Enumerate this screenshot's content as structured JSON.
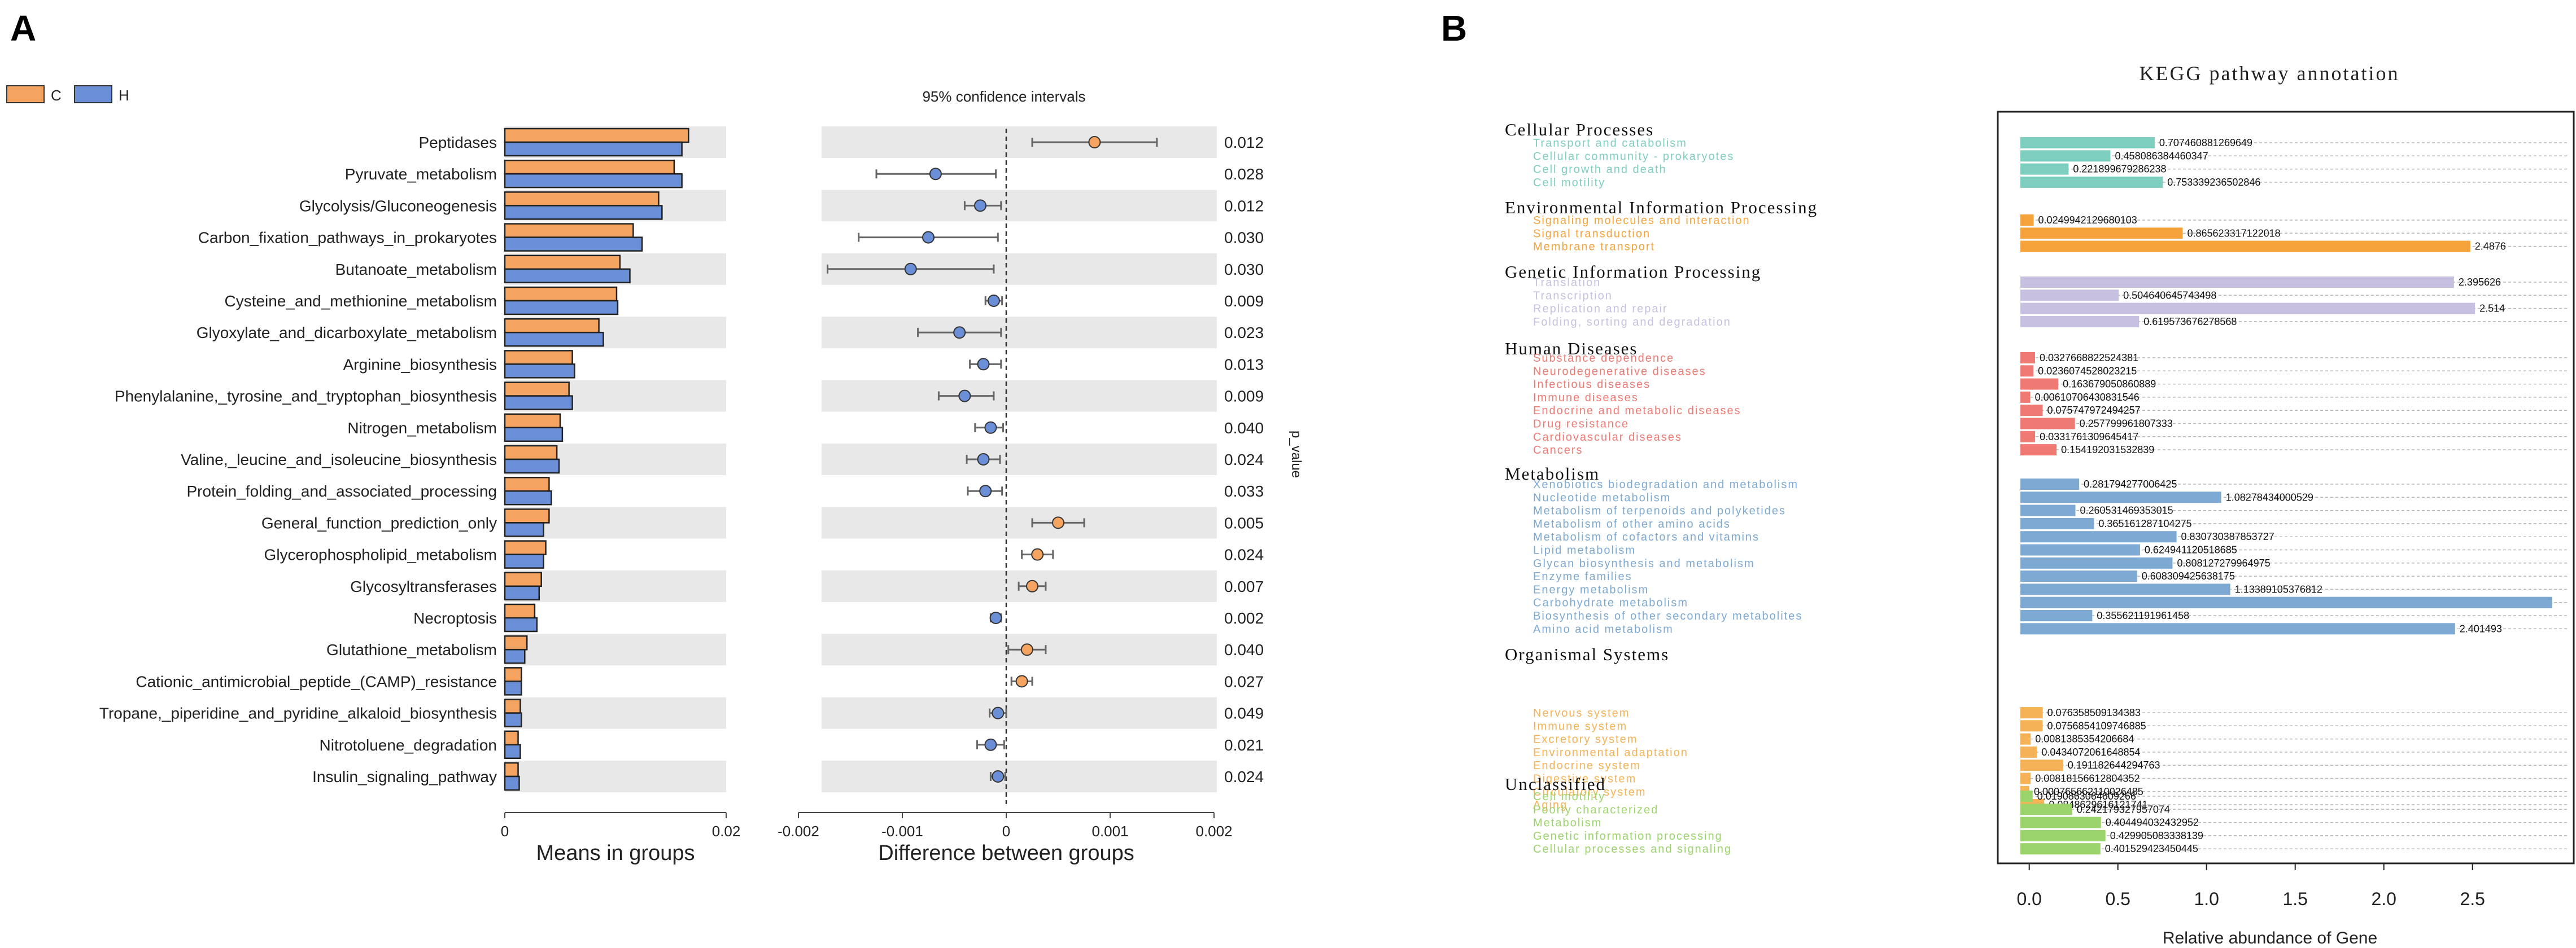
{
  "panel_labels": {
    "a": "A",
    "b": "B"
  },
  "colors": {
    "c": "#F4A460",
    "h": "#6B8FD6",
    "c_dark": "#E8843A",
    "h_dark": "#4A6FC0"
  },
  "chart_data": [
    {
      "type": "bar",
      "id": "means-in-groups",
      "legend": [
        {
          "key": "C",
          "color": "#F4A460"
        },
        {
          "key": "H",
          "color": "#6B8FD6"
        }
      ],
      "categories": [
        "Peptidases",
        "Pyruvate_metabolism",
        "Glycolysis/Gluconeogenesis",
        "Carbon_fixation_pathways_in_prokaryotes",
        "Butanoate_metabolism",
        "Cysteine_and_methionine_metabolism",
        "Glyoxylate_and_dicarboxylate_metabolism",
        "Arginine_biosynthesis",
        "Phenylalanine,_tyrosine_and_tryptophan_biosynthesis",
        "Nitrogen_metabolism",
        "Valine,_leucine_and_isoleucine_biosynthesis",
        "Protein_folding_and_associated_processing",
        "General_function_prediction_only",
        "Glycerophospholipid_metabolism",
        "Glycosyltransferases",
        "Necroptosis",
        "Glutathione_metabolism",
        "Cationic_antimicrobial_peptide_(CAMP)_resistance",
        "Tropane,_piperidine_and_pyridine_alkaloid_biosynthesis",
        "Nitrotoluene_degradation",
        "Insulin_signaling_pathway"
      ],
      "series": [
        {
          "name": "C",
          "values": [
            0.0166,
            0.0153,
            0.0139,
            0.0116,
            0.0104,
            0.0101,
            0.0085,
            0.0061,
            0.0058,
            0.005,
            0.0047,
            0.004,
            0.004,
            0.0037,
            0.0033,
            0.0027,
            0.002,
            0.0015,
            0.0014,
            0.0012,
            0.0012
          ]
        },
        {
          "name": "H",
          "values": [
            0.016,
            0.016,
            0.0142,
            0.0124,
            0.0113,
            0.0102,
            0.0089,
            0.0063,
            0.0061,
            0.0052,
            0.0049,
            0.0042,
            0.0035,
            0.0035,
            0.0031,
            0.0029,
            0.0018,
            0.0015,
            0.0015,
            0.0014,
            0.0013
          ]
        }
      ],
      "xlim": [
        0,
        0.02
      ],
      "xticks": [
        "0",
        "0.02"
      ],
      "xlabel": "Means in groups"
    },
    {
      "type": "scatter",
      "id": "difference-between-groups",
      "title": "95% confidence intervals",
      "xlabel": "Difference between groups",
      "ylabel": "p_value",
      "xlim": [
        -0.002,
        0.002
      ],
      "xticks": [
        "-0.002",
        "-0.001",
        "0",
        "0.001",
        "0.002"
      ],
      "points": [
        {
          "diff": 0.00085,
          "lo": 0.00025,
          "hi": 0.00145,
          "group": "C",
          "p": "0.012"
        },
        {
          "diff": -0.00068,
          "lo": -0.00125,
          "hi": -0.0001,
          "group": "H",
          "p": "0.028"
        },
        {
          "diff": -0.00025,
          "lo": -0.0004,
          "hi": -5e-05,
          "group": "H",
          "p": "0.012"
        },
        {
          "diff": -0.00075,
          "lo": -0.00142,
          "hi": -8e-05,
          "group": "H",
          "p": "0.030"
        },
        {
          "diff": -0.00092,
          "lo": -0.00172,
          "hi": -0.00012,
          "group": "H",
          "p": "0.030"
        },
        {
          "diff": -0.00012,
          "lo": -0.0002,
          "hi": -4e-05,
          "group": "H",
          "p": "0.009"
        },
        {
          "diff": -0.00045,
          "lo": -0.00085,
          "hi": -5e-05,
          "group": "H",
          "p": "0.023"
        },
        {
          "diff": -0.00022,
          "lo": -0.00035,
          "hi": -5e-05,
          "group": "H",
          "p": "0.013"
        },
        {
          "diff": -0.0004,
          "lo": -0.00065,
          "hi": -0.00012,
          "group": "H",
          "p": "0.009"
        },
        {
          "diff": -0.00015,
          "lo": -0.0003,
          "hi": -3e-05,
          "group": "H",
          "p": "0.040"
        },
        {
          "diff": -0.00022,
          "lo": -0.00038,
          "hi": -6e-05,
          "group": "H",
          "p": "0.024"
        },
        {
          "diff": -0.0002,
          "lo": -0.00037,
          "hi": -4e-05,
          "group": "H",
          "p": "0.033"
        },
        {
          "diff": 0.0005,
          "lo": 0.00025,
          "hi": 0.00075,
          "group": "C",
          "p": "0.005"
        },
        {
          "diff": 0.0003,
          "lo": 0.00015,
          "hi": 0.00045,
          "group": "C",
          "p": "0.024"
        },
        {
          "diff": 0.00025,
          "lo": 0.00012,
          "hi": 0.00038,
          "group": "C",
          "p": "0.007"
        },
        {
          "diff": -0.0001,
          "lo": -0.00015,
          "hi": -5e-05,
          "group": "H",
          "p": "0.002"
        },
        {
          "diff": 0.0002,
          "lo": 2e-05,
          "hi": 0.00038,
          "group": "C",
          "p": "0.040"
        },
        {
          "diff": 0.00015,
          "lo": 5e-05,
          "hi": 0.00025,
          "group": "C",
          "p": "0.027"
        },
        {
          "diff": -8e-05,
          "lo": -0.00016,
          "hi": 0.0,
          "group": "H",
          "p": "0.049"
        },
        {
          "diff": -0.00015,
          "lo": -0.00028,
          "hi": -2e-05,
          "group": "H",
          "p": "0.021"
        },
        {
          "diff": -8e-05,
          "lo": -0.00015,
          "hi": -1e-05,
          "group": "H",
          "p": "0.024"
        }
      ]
    },
    {
      "type": "bar",
      "id": "kegg-pathway-annotation",
      "title": "KEGG pathway annotation",
      "xlabel": "Relative abundance of Gene",
      "xlim": [
        -0.05,
        2.95
      ],
      "xticks": [
        "0.0",
        "0.5",
        "1.0",
        "1.5",
        "2.0",
        "2.5"
      ],
      "groups": [
        {
          "name": "Cellular Processes",
          "color": "#7ECFC0",
          "items": [
            {
              "label": "Transport and catabolism",
              "value": 0.707460881269649,
              "text": "0.707460881269649"
            },
            {
              "label": "Cellular community - prokaryotes",
              "value": 0.458086384460347,
              "text": "0.458086384460347"
            },
            {
              "label": "Cell growth and death",
              "value": 0.221899679286238,
              "text": "0.221899679286238"
            },
            {
              "label": "Cell motility",
              "value": 0.753339236502846,
              "text": "0.753339236502846"
            }
          ]
        },
        {
          "name": "Environmental Information Processing",
          "color": "#F5A33A",
          "items": [
            {
              "label": "Signaling molecules and interaction",
              "value": 0.0249942129680103,
              "text": "0.0249942129680103"
            },
            {
              "label": "Signal transduction",
              "value": 0.865623317122018,
              "text": "0.865623317122018"
            },
            {
              "label": "Membrane transport",
              "value": 2.4876,
              "text": "2.4876"
            }
          ]
        },
        {
          "name": "Genetic Information Processing",
          "color": "#C7C0E0",
          "items": [
            {
              "label": "Translation",
              "value": 2.395626,
              "text": "2.395626"
            },
            {
              "label": "Transcription",
              "value": 0.504640645743498,
              "text": "0.504640645743498"
            },
            {
              "label": "Replication and repair",
              "value": 2.514,
              "text": "2.514"
            },
            {
              "label": "Folding, sorting and degradation",
              "value": 0.619573676278568,
              "text": "0.619573676278568"
            }
          ]
        },
        {
          "name": "Human Diseases",
          "color": "#EE7A73",
          "items": [
            {
              "label": "Substance dependence",
              "value": 0.0327668822524381,
              "text": "0.0327668822524381"
            },
            {
              "label": "Neurodegenerative diseases",
              "value": 0.0236074528023215,
              "text": "0.0236074528023215"
            },
            {
              "label": "Infectious diseases",
              "value": 0.163679050860889,
              "text": "0.163679050860889"
            },
            {
              "label": "Immune diseases",
              "value": 0.00610706430831546,
              "text": "0.00610706430831546"
            },
            {
              "label": "Endocrine and metabolic diseases",
              "value": 0.075747972494257,
              "text": "0.075747972494257"
            },
            {
              "label": "Drug resistance",
              "value": 0.257799961807333,
              "text": "0.257799961807333"
            },
            {
              "label": "Cardiovascular diseases",
              "value": 0.033176130964541,
              "text": "0.0331761309645417"
            },
            {
              "label": "Cancers",
              "value": 0.154192031532839,
              "text": "0.154192031532839"
            }
          ]
        },
        {
          "name": "Metabolism",
          "color": "#7DA9D2",
          "items": [
            {
              "label": "Xenobiotics biodegradation and metabolism",
              "value": 0.281794277006425,
              "text": "0.281794277006425"
            },
            {
              "label": "Nucleotide metabolism",
              "value": 1.08278434000529,
              "text": "1.08278434000529"
            },
            {
              "label": "Metabolism of terpenoids and polyketides",
              "value": 0.260531469353015,
              "text": "0.260531469353015"
            },
            {
              "label": "Metabolism of other amino acids",
              "value": 0.365161287104275,
              "text": "0.365161287104275"
            },
            {
              "label": "Metabolism of cofactors and vitamins",
              "value": 0.830730387853727,
              "text": "0.830730387853727"
            },
            {
              "label": "Lipid metabolism",
              "value": 0.624941120518685,
              "text": "0.624941120518685"
            },
            {
              "label": "Glycan biosynthesis and metabolism",
              "value": 0.808127279964975,
              "text": "0.808127279964975"
            },
            {
              "label": "Enzyme families",
              "value": 0.608309425638175,
              "text": "0.608309425638175"
            },
            {
              "label": "Energy metabolism",
              "value": 1.13389105376812,
              "text": "1.13389105376812"
            },
            {
              "label": "Carbohydrate metabolism",
              "value": 2.95,
              "text": ""
            },
            {
              "label": "Biosynthesis of other secondary metabolites",
              "value": 0.355621191961458,
              "text": "0.355621191961458"
            },
            {
              "label": "Amino acid metabolism",
              "value": 2.401493,
              "text": "2.401493"
            }
          ]
        },
        {
          "name": "Organismal Systems",
          "color": "#F5B256",
          "items": [
            {
              "label": "Nervous system",
              "value": 0.076358509134383,
              "text": "0.076358509134383"
            },
            {
              "label": "Immune system",
              "value": 0.0756854109746885,
              "text": "0.0756854109746885"
            },
            {
              "label": "Excretory system",
              "value": 0.0081385354206684,
              "text": "0.0081385354206684"
            },
            {
              "label": "Environmental adaptation",
              "value": 0.0434072061648854,
              "text": "0.0434072061648854"
            },
            {
              "label": "Endocrine system",
              "value": 0.191182644294763,
              "text": "0.191182644294763"
            },
            {
              "label": "Digestive system",
              "value": 0.00818156612804352,
              "text": "0.00818156612804352"
            },
            {
              "label": "Circulatory system",
              "value": 0.000765662110026485,
              "text": "0.000765662110026485"
            },
            {
              "label": "Aging",
              "value": 0.0848629616121741,
              "text": "0.0848629616121741"
            }
          ]
        },
        {
          "name": "Unclassified",
          "color": "#9BD46A",
          "items": [
            {
              "label": "Cell motility",
              "value": 0.0190863064609266,
              "text": "0.0190863064609266"
            },
            {
              "label": "Poorly characterized",
              "value": 0.242179327957074,
              "text": "0.242179327957074"
            },
            {
              "label": "Metabolism",
              "value": 0.404494032432952,
              "text": "0.404494032432952"
            },
            {
              "label": "Genetic information processing",
              "value": 0.429905083338139,
              "text": "0.429905083338139"
            },
            {
              "label": "Cellular processes and signaling",
              "value": 0.401529423450445,
              "text": "0.401529423450445"
            }
          ]
        }
      ]
    }
  ]
}
